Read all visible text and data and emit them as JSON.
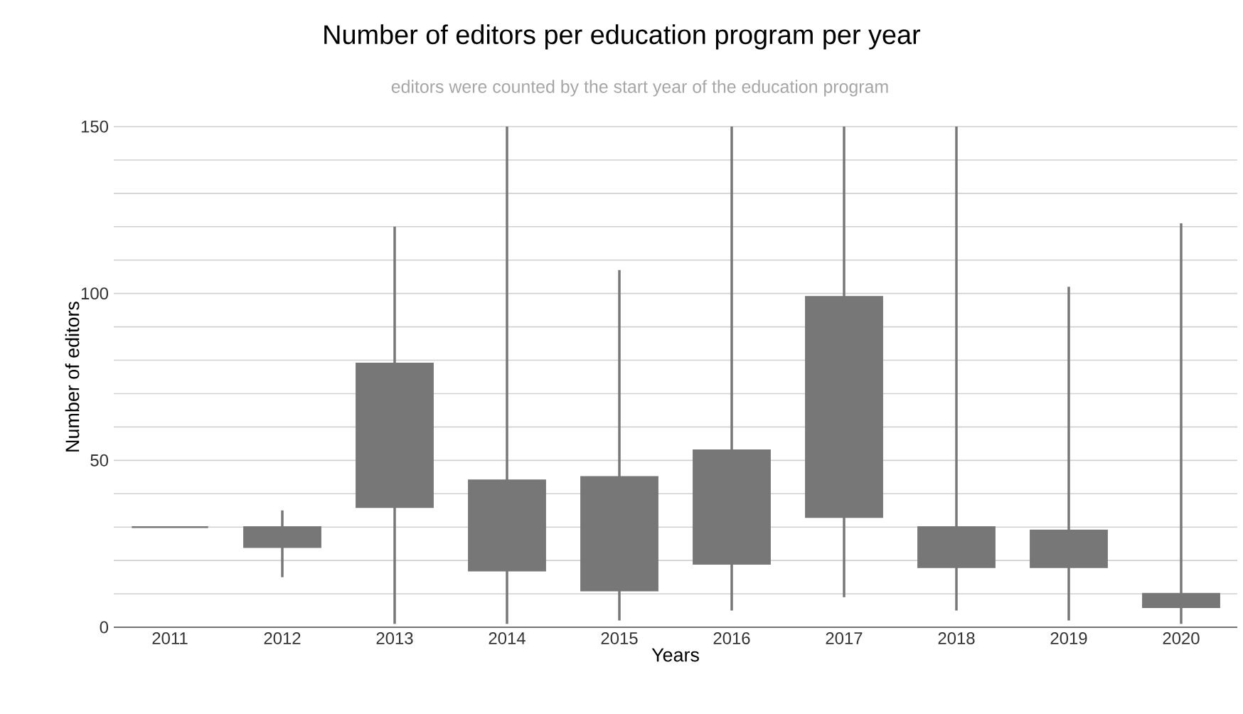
{
  "chart_data": {
    "type": "candlestick",
    "title": "Number of editors per education program per year",
    "subtitle": "editors were counted by the start year of the education program",
    "xlabel": "Years",
    "ylabel": "Number of editors",
    "categories": [
      "2011",
      "2012",
      "2013",
      "2014",
      "2015",
      "2016",
      "2017",
      "2018",
      "2019",
      "2020"
    ],
    "ohlc": [
      [
        30,
        30,
        30,
        30
      ],
      [
        24,
        35,
        15,
        30
      ],
      [
        36,
        120,
        1,
        79
      ],
      [
        17,
        150,
        1,
        44
      ],
      [
        11,
        107,
        2,
        45
      ],
      [
        19,
        150,
        5,
        53
      ],
      [
        33,
        150,
        9,
        99
      ],
      [
        18,
        150,
        5,
        30
      ],
      [
        18,
        102,
        2,
        29
      ],
      [
        6,
        121,
        1,
        10
      ]
    ],
    "color": "#777777",
    "ylim": [
      0,
      150
    ],
    "yticks": [
      0,
      {
        "value": 10,
        "label": null
      },
      {
        "value": 20,
        "label": null
      },
      {
        "value": 30,
        "label": null
      },
      {
        "value": 40,
        "label": null
      },
      50,
      {
        "value": 60,
        "label": null
      },
      {
        "value": 70,
        "label": null
      },
      {
        "value": 80,
        "label": null
      },
      {
        "value": 90,
        "label": null
      },
      100,
      {
        "value": 110,
        "label": null
      },
      {
        "value": 120,
        "label": null
      },
      {
        "value": 130,
        "label": null
      },
      {
        "value": 140,
        "label": null
      },
      150
    ],
    "grid": "y"
  }
}
